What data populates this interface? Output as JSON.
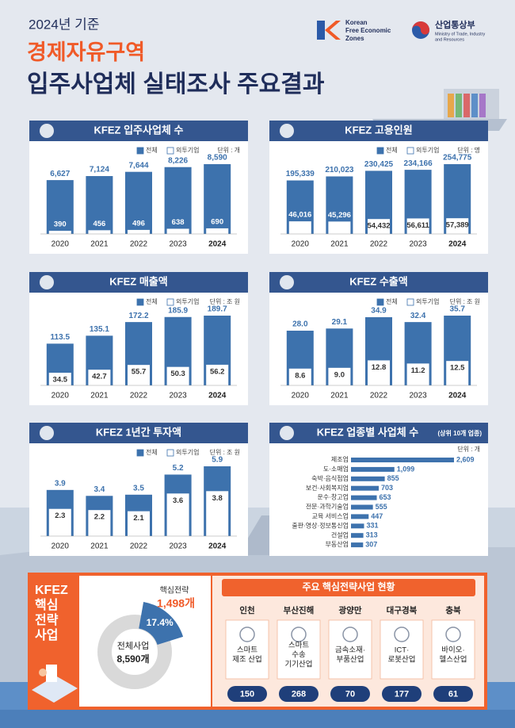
{
  "header": {
    "year": "2024년 기준",
    "title1": "경제자유구역",
    "title2": "입주사업체 실태조사 주요결과",
    "logo1": [
      "Korean",
      "Free Economic",
      "Zones"
    ],
    "logo2": "산업통상부",
    "logo2_sub": [
      "Ministry of Trade, Industry",
      "and Resources"
    ]
  },
  "chart_data": [
    {
      "type": "bar",
      "title": "KFEZ 입주사업체 수",
      "unit": "단위 : 개",
      "categories": [
        "2020",
        "2021",
        "2022",
        "2023",
        "2024"
      ],
      "series": [
        {
          "name": "전체",
          "color": "#3d72ad",
          "values": [
            6627,
            7124,
            7644,
            8226,
            8590
          ],
          "value_labels": [
            "6,627",
            "7,124",
            "7,644",
            "8,226",
            "8,590"
          ]
        },
        {
          "name": "외투기업",
          "color": "#ffffff",
          "values": [
            390,
            456,
            496,
            638,
            690
          ]
        }
      ]
    },
    {
      "type": "bar",
      "title": "KFEZ 고용인원",
      "unit": "단위 : 명",
      "categories": [
        "2020",
        "2021",
        "2022",
        "2023",
        "2024"
      ],
      "series": [
        {
          "name": "전체",
          "color": "#3d72ad",
          "values": [
            195339,
            210023,
            230425,
            234166,
            254775
          ],
          "value_labels": [
            "195,339",
            "210,023",
            "230,425",
            "234,166",
            "254,775"
          ]
        },
        {
          "name": "외투기업",
          "color": "#ffffff",
          "values": [
            46016,
            45296,
            54432,
            56611,
            57389
          ],
          "value_labels": [
            "46,016",
            "45,296",
            "54,432",
            "56,611",
            "57,389"
          ]
        }
      ]
    },
    {
      "type": "bar",
      "title": "KFEZ 매출액",
      "unit": "단위 : 조 원",
      "categories": [
        "2020",
        "2021",
        "2022",
        "2023",
        "2024"
      ],
      "series": [
        {
          "name": "전체",
          "color": "#3d72ad",
          "values": [
            113.5,
            135.1,
            172.2,
            185.9,
            189.7
          ]
        },
        {
          "name": "외투기업",
          "color": "#ffffff",
          "values": [
            34.5,
            42.7,
            55.7,
            50.3,
            56.2
          ]
        }
      ]
    },
    {
      "type": "bar",
      "title": "KFEZ 수출액",
      "unit": "단위 : 조 원",
      "categories": [
        "2020",
        "2021",
        "2022",
        "2023",
        "2024"
      ],
      "series": [
        {
          "name": "전체",
          "color": "#3d72ad",
          "values": [
            28.0,
            29.1,
            34.9,
            32.4,
            35.7
          ],
          "value_labels": [
            "28.0",
            "29.1",
            "34.9",
            "32.4",
            "35.7"
          ]
        },
        {
          "name": "외투기업",
          "color": "#ffffff",
          "values": [
            8.6,
            9.0,
            12.8,
            11.2,
            12.5
          ],
          "value_labels": [
            "8.6",
            "9.0",
            "12.8",
            "11.2",
            "12.5"
          ]
        }
      ]
    },
    {
      "type": "bar",
      "title": "KFEZ 1년간 투자액",
      "unit": "단위 : 조 원",
      "categories": [
        "2020",
        "2021",
        "2022",
        "2023",
        "2024"
      ],
      "series": [
        {
          "name": "전체",
          "color": "#3d72ad",
          "values": [
            3.9,
            3.4,
            3.5,
            5.2,
            5.9
          ]
        },
        {
          "name": "외투기업",
          "color": "#ffffff",
          "values": [
            2.3,
            2.2,
            2.1,
            3.6,
            3.8
          ]
        }
      ]
    },
    {
      "type": "hbar",
      "title": "KFEZ 업종별 사업체 수",
      "subtitle": "(상위 10개 업종)",
      "unit": "단위 : 개",
      "color": "#3d72ad",
      "categories": [
        "제조업",
        "도·소매업",
        "숙박·음식점업",
        "보건·사회복지업",
        "운수·창고업",
        "전문·과학기술업",
        "교육 서비스업",
        "출판·영상·정보통신업",
        "건설업",
        "부동산업"
      ],
      "values": [
        2609,
        1099,
        855,
        703,
        653,
        555,
        447,
        331,
        313,
        307
      ],
      "value_labels": [
        "2,609",
        "1,099",
        "855",
        "703",
        "653",
        "555",
        "447",
        "331",
        "313",
        "307"
      ]
    },
    {
      "type": "donut",
      "values": [
        17.4
      ],
      "value_labels": [
        "17.4%"
      ],
      "colors": [
        "#3d72ad",
        "#d9d9d9"
      ],
      "highlight_label": "핵심전략",
      "highlight_count": "1,498개",
      "center_label": "전체사업",
      "center_count": "8,590개"
    }
  ],
  "summary": {
    "label": [
      "KFEZ",
      "핵심",
      "전략",
      "사업"
    ],
    "table_title": "주요 핵심전략사업 현황",
    "regions": [
      {
        "name": "인천",
        "industry": [
          "스마트",
          "제조 산업"
        ],
        "count": "150"
      },
      {
        "name": "부산진해",
        "industry": [
          "스마트",
          "수송",
          "기기산업"
        ],
        "count": "268"
      },
      {
        "name": "광양만",
        "industry": [
          "금속소재·",
          "부품산업"
        ],
        "count": "70"
      },
      {
        "name": "대구경북",
        "industry": [
          "ICT·",
          "로봇산업"
        ],
        "count": "177"
      },
      {
        "name": "충북",
        "industry": [
          "바이오·",
          "헬스산업"
        ],
        "count": "61"
      }
    ]
  }
}
